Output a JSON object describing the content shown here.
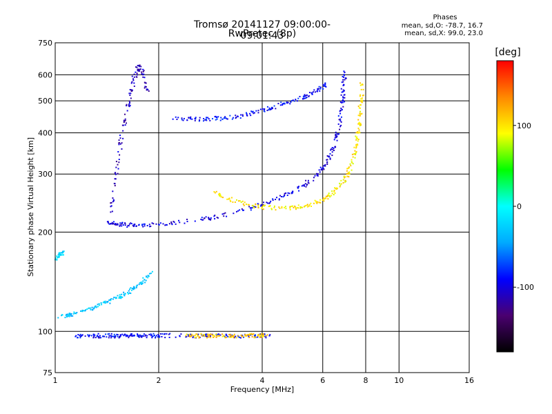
{
  "chart_data": {
    "type": "scatter",
    "title": "Tromsø 20141127 09:00:00-09:01:43",
    "subtitle": "RwPretec (8p)",
    "xlabel": "Frequency [MHz]",
    "ylabel": "Stationary phase Virtual Height [km]",
    "x_scale": "log",
    "y_scale": "log",
    "xlim": [
      1,
      16
    ],
    "ylim": [
      75,
      750
    ],
    "x_ticks": [
      1,
      2,
      4,
      6,
      8,
      10,
      16
    ],
    "x_tick_labels": [
      "1",
      "2",
      "4",
      "6",
      "8",
      "10",
      "16"
    ],
    "y_ticks": [
      75,
      100,
      200,
      300,
      400,
      500,
      600,
      750
    ],
    "y_tick_labels": [
      "75",
      "100",
      "200",
      "300",
      "400",
      "500",
      "600",
      "750"
    ],
    "grid": true,
    "colorbar": {
      "label": "[deg]",
      "range": [
        -180,
        180
      ],
      "ticks": [
        -100,
        0,
        100
      ],
      "tick_labels": [
        "-100",
        "0",
        "100"
      ],
      "colors": [
        "#000000",
        "#4a0070",
        "#0000ff",
        "#00aaff",
        "#00ffff",
        "#00ff00",
        "#ffff00",
        "#ff8800",
        "#ff0000"
      ]
    },
    "phase_stats": {
      "heading": "Phases",
      "o_mode": "mean, sd,O: -78.7, 16.7",
      "x_mode": "mean, sd,X:  99.0, 23.0"
    },
    "traces": [
      {
        "x": [
          1.42,
          1.5,
          1.6,
          1.75,
          2.0,
          2.3,
          2.8,
          3.3,
          3.8,
          4.3,
          4.8,
          5.3,
          5.8,
          6.1,
          6.4,
          6.6,
          6.75,
          6.85,
          6.9,
          6.95
        ],
        "y": [
          215,
          212,
          210,
          210,
          211,
          214,
          220,
          228,
          238,
          250,
          262,
          278,
          300,
          320,
          350,
          390,
          440,
          500,
          560,
          610
        ],
        "phase": -100
      },
      {
        "x": [
          2.9,
          3.2,
          3.6,
          4.0,
          4.5,
          5.0,
          5.5,
          6.0,
          6.4,
          6.8,
          7.1,
          7.3,
          7.5,
          7.6,
          7.7,
          7.75,
          7.8
        ],
        "y": [
          265,
          252,
          243,
          238,
          236,
          238,
          242,
          250,
          262,
          280,
          300,
          325,
          360,
          400,
          450,
          500,
          560
        ],
        "phase": 100
      },
      {
        "x": [
          2.2,
          2.5,
          2.8,
          3.1,
          3.4,
          3.8,
          4.2,
          4.6,
          5.0,
          5.4,
          5.8,
          6.1
        ],
        "y": [
          440,
          440,
          441,
          443,
          448,
          460,
          475,
          490,
          505,
          520,
          540,
          560
        ],
        "phase": -90
      },
      {
        "x": [
          1.15,
          1.25,
          1.35,
          1.45,
          1.55,
          1.65,
          1.75,
          1.85,
          2.0,
          2.3,
          2.7,
          3.0,
          3.4,
          3.8,
          4.2
        ],
        "y": [
          97,
          97,
          97,
          97,
          97,
          97,
          97,
          97,
          97,
          97,
          97,
          97,
          97,
          97,
          97
        ],
        "phase": -90
      },
      {
        "x": [
          2.4,
          2.6,
          2.8,
          3.0,
          3.3,
          3.6,
          3.9,
          4.1
        ],
        "y": [
          97,
          97,
          97,
          97,
          97,
          97,
          97,
          97
        ],
        "phase": 110
      },
      {
        "x": [
          1.45,
          1.5,
          1.55,
          1.6,
          1.65,
          1.7,
          1.75,
          1.8,
          1.85
        ],
        "y": [
          230,
          290,
          370,
          440,
          520,
          590,
          640,
          600,
          540
        ],
        "phase": -110
      },
      {
        "x": [
          1.02,
          1.1,
          1.2,
          1.3,
          1.4,
          1.5,
          1.6,
          1.7,
          1.8,
          1.9
        ],
        "y": [
          110,
          112,
          115,
          118,
          122,
          126,
          130,
          136,
          142,
          150
        ],
        "phase": -30
      },
      {
        "x": [
          1.0,
          1.03,
          1.06
        ],
        "y": [
          165,
          170,
          175
        ],
        "phase": -20
      }
    ]
  }
}
